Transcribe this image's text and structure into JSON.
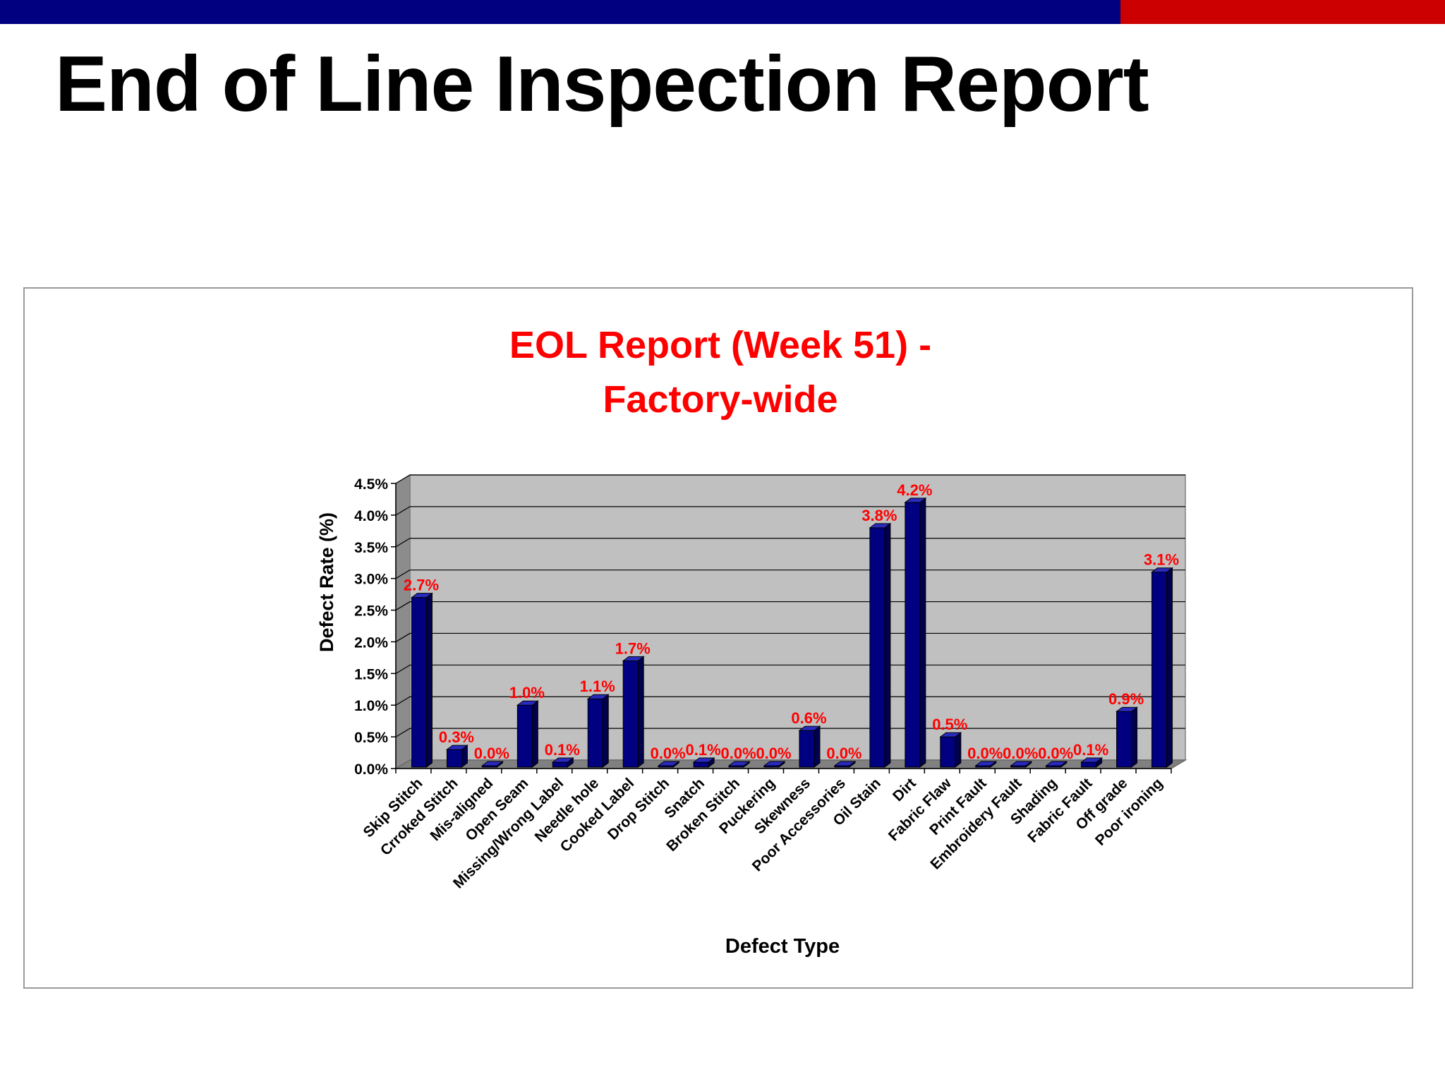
{
  "slide": {
    "title": "End of Line Inspection Report"
  },
  "colors": {
    "top_bar_blue": "#000080",
    "top_bar_red": "#cc0000",
    "bar_fill": "#000080",
    "data_label": "#ff0000",
    "plot_background": "#c0c0c0"
  },
  "chart_data": {
    "type": "bar",
    "title_lines": [
      "EOL Report (Week 51) -",
      "Factory-wide"
    ],
    "xlabel": "Defect Type",
    "ylabel": "Defect Rate (%)",
    "ylim": [
      0,
      4.5
    ],
    "yticks": [
      "0.0%",
      "0.5%",
      "1.0%",
      "1.5%",
      "2.0%",
      "2.5%",
      "3.0%",
      "3.5%",
      "4.0%",
      "4.5%"
    ],
    "grid": true,
    "legend": "none",
    "categories": [
      "Skip Stitch",
      "Crroked Stitch",
      "Mis-aligned",
      "Open Seam",
      "Missing/Wrong Label",
      "Needle hole",
      "Cooked Label",
      "Drop Stitch",
      "Snatch",
      "Broken Stitch",
      "Puckering",
      "Skewness",
      "Poor Accessories",
      "Oil Stain",
      "Dirt",
      "Fabric Flaw",
      "Print Fault",
      "Embroidery Fault",
      "Shading",
      "Fabric Fault",
      "Off grade",
      "Poor ironing"
    ],
    "values": [
      2.7,
      0.3,
      0.0,
      1.0,
      0.1,
      1.1,
      1.7,
      0.0,
      0.1,
      0.0,
      0.0,
      0.6,
      0.0,
      3.8,
      4.2,
      0.5,
      0.0,
      0.0,
      0.0,
      0.1,
      0.9,
      3.1
    ],
    "data_labels": [
      "2.7%",
      "0.3%",
      "0.0%",
      "1.0%",
      "0.1%",
      "1.1%",
      "1.7%",
      "0.0%",
      "0.1%",
      "0.0%",
      "0.0%",
      "0.6%",
      "0.0%",
      "3.8%",
      "4.2%",
      "0.5%",
      "0.0%",
      "0.0%",
      "0.0%",
      "0.1%",
      "0.9%",
      "3.1%"
    ]
  }
}
